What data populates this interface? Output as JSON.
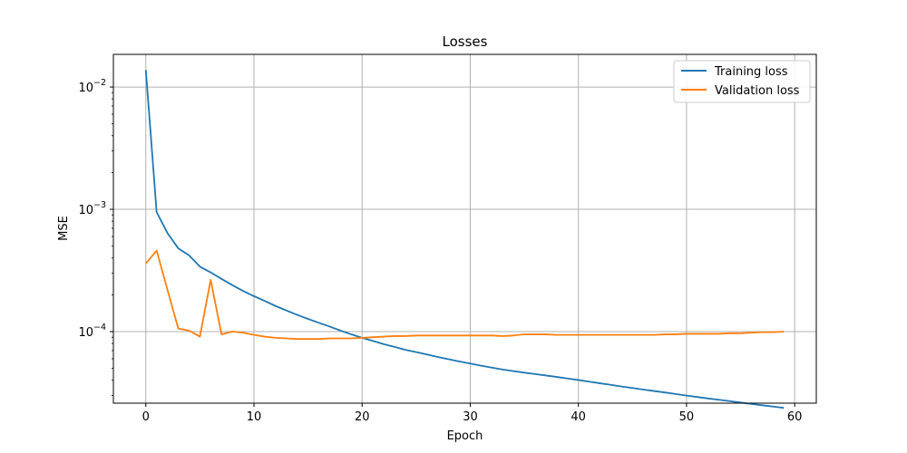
{
  "chart_data": {
    "type": "line",
    "title": "Losses",
    "xlabel": "Epoch",
    "ylabel": "MSE",
    "xlim": [
      -3,
      62
    ],
    "ylim": [
      2.6e-05,
      0.0185
    ],
    "yscale": "log",
    "grid": true,
    "legend_position": "top-right",
    "x_ticks": [
      0,
      10,
      20,
      30,
      40,
      50,
      60
    ],
    "y_ticks": [
      {
        "value": 0.0001,
        "base": "10",
        "exp": "−4"
      },
      {
        "value": 0.001,
        "base": "10",
        "exp": "−3"
      },
      {
        "value": 0.01,
        "base": "10",
        "exp": "−2"
      }
    ],
    "x": [
      0,
      1,
      2,
      3,
      4,
      5,
      6,
      7,
      8,
      9,
      10,
      11,
      12,
      13,
      14,
      15,
      16,
      17,
      18,
      19,
      20,
      21,
      22,
      23,
      24,
      25,
      26,
      27,
      28,
      29,
      30,
      31,
      32,
      33,
      34,
      35,
      36,
      37,
      38,
      39,
      40,
      41,
      42,
      43,
      44,
      45,
      46,
      47,
      48,
      49,
      50,
      51,
      52,
      53,
      54,
      55,
      56,
      57,
      58,
      59
    ],
    "series": [
      {
        "name": "Training loss",
        "color": "#1f77b4",
        "values": [
          0.0138,
          0.00095,
          0.00064,
          0.00048,
          0.00042,
          0.00034,
          0.000305,
          0.00027,
          0.00024,
          0.000215,
          0.000195,
          0.000178,
          0.000162,
          0.000149,
          0.000137,
          0.000127,
          0.000118,
          0.00011,
          0.000102,
          9.5e-05,
          8.9e-05,
          8.4e-05,
          7.9e-05,
          7.5e-05,
          7.1e-05,
          6.8e-05,
          6.5e-05,
          6.2e-05,
          5.95e-05,
          5.7e-05,
          5.48e-05,
          5.27e-05,
          5.08e-05,
          4.9e-05,
          4.75e-05,
          4.62e-05,
          4.5e-05,
          4.38e-05,
          4.26e-05,
          4.14e-05,
          4.02e-05,
          3.9e-05,
          3.78e-05,
          3.67e-05,
          3.56e-05,
          3.46e-05,
          3.36e-05,
          3.27e-05,
          3.18e-05,
          3.09e-05,
          3e-05,
          2.92e-05,
          2.84e-05,
          2.77e-05,
          2.7e-05,
          2.63e-05,
          2.56e-05,
          2.5e-05,
          2.44e-05,
          2.38e-05
        ]
      },
      {
        "name": "Validation loss",
        "color": "#ff7f0e",
        "values": [
          0.00036,
          0.00046,
          0.00022,
          0.000106,
          0.000102,
          9.1e-05,
          0.000265,
          9.5e-05,
          0.0001,
          9.8e-05,
          9.4e-05,
          9.1e-05,
          8.9e-05,
          8.8e-05,
          8.7e-05,
          8.7e-05,
          8.7e-05,
          8.8e-05,
          8.8e-05,
          8.8e-05,
          8.9e-05,
          9e-05,
          9.1e-05,
          9.2e-05,
          9.2e-05,
          9.3e-05,
          9.3e-05,
          9.3e-05,
          9.3e-05,
          9.3e-05,
          9.3e-05,
          9.3e-05,
          9.3e-05,
          9.2e-05,
          9.3e-05,
          9.5e-05,
          9.5e-05,
          9.5e-05,
          9.4e-05,
          9.4e-05,
          9.4e-05,
          9.4e-05,
          9.4e-05,
          9.4e-05,
          9.4e-05,
          9.4e-05,
          9.4e-05,
          9.4e-05,
          9.5e-05,
          9.5e-05,
          9.6e-05,
          9.6e-05,
          9.6e-05,
          9.6e-05,
          9.7e-05,
          9.7e-05,
          9.8e-05,
          9.9e-05,
          9.9e-05,
          0.0001
        ]
      }
    ]
  }
}
